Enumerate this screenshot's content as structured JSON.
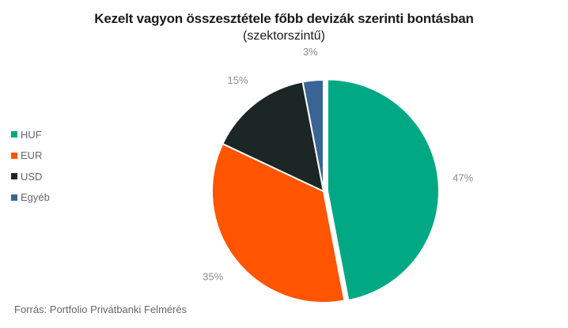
{
  "chart_data": {
    "type": "pie",
    "title": "Kezelt vagyon összesztétele főbb devizák szerinti bontásban",
    "subtitle": "(szektorszintű)",
    "categories": [
      "HUF",
      "EUR",
      "USD",
      "Egyéb"
    ],
    "values": [
      47,
      35,
      15,
      3
    ],
    "labels": [
      "47%",
      "35%",
      "15%",
      "3%"
    ],
    "colors": [
      "#00a983",
      "#ff5500",
      "#1c2624",
      "#3a6494"
    ],
    "legend_position": "left"
  },
  "source": "Forrás: Portfolio Privátbanki Felmérés"
}
